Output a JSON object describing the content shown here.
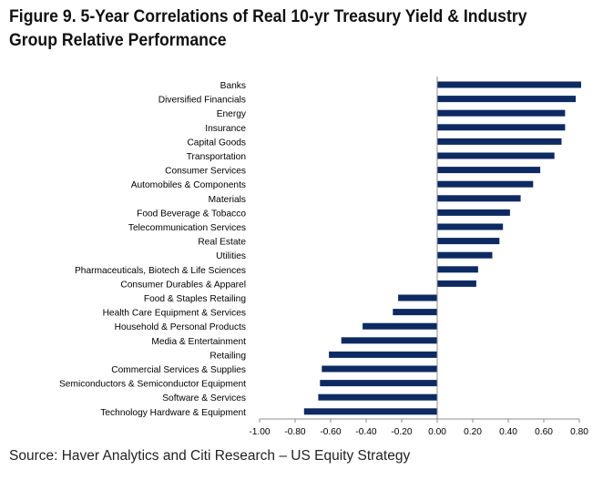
{
  "figure": {
    "title_line1": "Figure 9. 5-Year Correlations of Real 10-yr Treasury Yield & Industry",
    "title_line2": "Group Relative Performance",
    "source": "Source: Haver Analytics and Citi Research – US Equity Strategy"
  },
  "chart_data": {
    "type": "bar",
    "orientation": "horizontal",
    "title": "Figure 9. 5-Year Correlations of Real 10-yr Treasury Yield & Industry Group Relative Performance",
    "xlabel": "",
    "ylabel": "",
    "xlim": [
      -1.0,
      0.8
    ],
    "x_ticks": [
      -1.0,
      -0.8,
      -0.6,
      -0.4,
      -0.2,
      0.0,
      0.2,
      0.4,
      0.6,
      0.8
    ],
    "x_tick_labels": [
      "-1.00",
      "-0.80",
      "-0.60",
      "-0.40",
      "-0.20",
      "0.00",
      "0.20",
      "0.40",
      "0.60",
      "0.80"
    ],
    "grid": false,
    "legend": "none",
    "bar_color": "#0d2a62",
    "categories": [
      "Banks",
      "Diversified Financials",
      "Energy",
      "Insurance",
      "Capital Goods",
      "Transportation",
      "Consumer Services",
      "Automobiles & Components",
      "Materials",
      "Food Beverage & Tobacco",
      "Telecommunication Services",
      "Real Estate",
      "Utilities",
      "Pharmaceuticals, Biotech & Life Sciences",
      "Consumer Durables & Apparel",
      "Food & Staples Retailing",
      "Health Care Equipment & Services",
      "Household & Personal Products",
      "Media & Entertainment",
      "Retailing",
      "Commercial Services & Supplies",
      "Semiconductors & Semiconductor Equipment",
      "Software & Services",
      "Technology Hardware & Equipment"
    ],
    "values": [
      0.81,
      0.78,
      0.72,
      0.72,
      0.7,
      0.66,
      0.58,
      0.54,
      0.47,
      0.41,
      0.37,
      0.35,
      0.31,
      0.23,
      0.22,
      -0.22,
      -0.25,
      -0.42,
      -0.54,
      -0.61,
      -0.65,
      -0.66,
      -0.67,
      -0.75
    ]
  }
}
